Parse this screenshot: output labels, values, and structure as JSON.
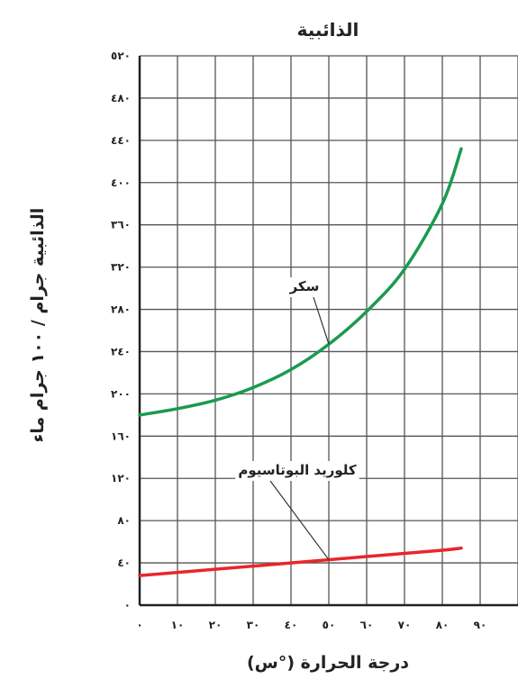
{
  "chart_data": {
    "type": "line",
    "title": "الذائبية",
    "xlabel": "درجة الحرارة (°س)",
    "ylabel": "الذائبية جرام / ١٠٠ جرام ماء",
    "xlim": [
      0,
      100
    ],
    "ylim": [
      0,
      520
    ],
    "x_ticks": [
      0,
      10,
      20,
      30,
      40,
      50,
      60,
      70,
      80,
      90
    ],
    "x_tick_labels": [
      "٠",
      "١٠",
      "٢٠",
      "٣٠",
      "٤٠",
      "٥٠",
      "٦٠",
      "٧٠",
      "٨٠",
      "٩٠"
    ],
    "y_ticks": [
      0,
      40,
      80,
      120,
      160,
      200,
      240,
      280,
      320,
      360,
      400,
      440,
      480,
      520
    ],
    "y_tick_labels": [
      "٠",
      "٤٠",
      "٨٠",
      "١٢٠",
      "١٦٠",
      "٢٠٠",
      "٢٤٠",
      "٢٨٠",
      "٣٢٠",
      "٣٦٠",
      "٤٠٠",
      "٤٤٠",
      "٤٨٠",
      "٥٢٠"
    ],
    "grid": true,
    "series": [
      {
        "name": "سكر",
        "color": "#1a9a50",
        "x": [
          0,
          10,
          20,
          30,
          40,
          50,
          60,
          70,
          80,
          85
        ],
        "y": [
          180,
          186,
          194,
          206,
          223,
          247,
          278,
          318,
          380,
          432
        ]
      },
      {
        "name": "كلوريد البوتاسيوم",
        "color": "#e8262b",
        "x": [
          0,
          20,
          40,
          60,
          80,
          85
        ],
        "y": [
          28,
          34,
          40,
          46,
          52,
          54
        ]
      }
    ],
    "annotations": [
      {
        "text": "سكر",
        "series": 0,
        "point_x": 50
      },
      {
        "text": "كلوريد البوتاسيوم",
        "series": 1,
        "point_x": 50
      }
    ]
  }
}
